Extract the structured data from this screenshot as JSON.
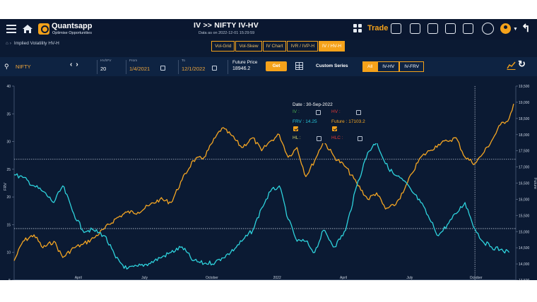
{
  "header": {
    "brand": "Quantsapp",
    "brand_tagline": "Optimise Opportunities",
    "title": "IV >> NIFTY IV-HV",
    "data_as_of": "Data as on 2022-12-01 15:29:59",
    "trade_label": "Trade"
  },
  "breadcrumb": {
    "label": "Implied Volatility HV-H"
  },
  "tabs": [
    "Vol-Grid",
    "Vol-Skew",
    "IV Chart",
    "IVR / IVP-H",
    "IV / HV-H"
  ],
  "active_tab": "IV / HV-H",
  "controls": {
    "symbol": "NIFTY",
    "hv_label": "HV/IFV",
    "hv_value": "20",
    "from_label": "From",
    "from_value": "1/4/2021",
    "to_label": "To",
    "to_value": "12/1/2022",
    "future_price_label": "Future Price",
    "future_price_value": "18946.2",
    "get_label": "Get",
    "custom_series_label": "Custom Series",
    "series_buttons": [
      "All",
      "IV-HV",
      "IV-FRV"
    ],
    "active_series": "All"
  },
  "tooltip": {
    "date": "Date : 30-Sep-2022",
    "items": [
      {
        "label": "IV :",
        "color": "#4caf50",
        "checked": false
      },
      {
        "label": "HV :",
        "color": "#e53935",
        "checked": false
      },
      {
        "label": "FRV : 14.25",
        "color": "#26c6da",
        "checked": true
      },
      {
        "label": "Future : 17103.2",
        "color": "#f5a623",
        "checked": true
      },
      {
        "label": "HL :",
        "color": "#d6d66a",
        "checked": false
      },
      {
        "label": "HLC :",
        "color": "#e53935",
        "checked": false
      }
    ]
  },
  "colors": {
    "accent": "#f5a21a",
    "background": "#0b1a33",
    "frv_line": "#2ed3dd",
    "future_line": "#f5a623"
  },
  "chart_data": {
    "type": "line",
    "ylabel_left": "FRV",
    "ylabel_right": "Future",
    "ylim_left": [
      5,
      40
    ],
    "ylim_right": [
      13500,
      19500
    ],
    "left_ticks": [
      "40",
      "35",
      "30",
      "25",
      "20",
      "15",
      "10",
      "5"
    ],
    "right_ticks": [
      "19,500",
      "19,000",
      "18,500",
      "18,000",
      "17,500",
      "17,000",
      "16,500",
      "16,000",
      "15,500",
      "15,000",
      "14,500",
      "14,000",
      "13,500"
    ],
    "x_ticks": [
      "April",
      "July",
      "October",
      "2022",
      "April",
      "July",
      "October"
    ],
    "x_tick_month_index": [
      2.9,
      5.9,
      8.95,
      11.9,
      14.9,
      17.9,
      20.9
    ],
    "crosshair": {
      "month_index": 20.85,
      "left_value": 14.3,
      "right_value": 17103.2
    },
    "reference_line_left_value": 26.8,
    "series": [
      {
        "name": "Future",
        "axis": "right",
        "x": [
          0,
          0.4,
          0.9,
          1.3,
          1.8,
          2.2,
          2.7,
          3.1,
          3.6,
          4.1,
          4.6,
          5.1,
          5.6,
          6.1,
          6.6,
          7.1,
          7.6,
          8.1,
          8.6,
          9.1,
          9.4,
          9.8,
          10.3,
          10.8,
          11.2,
          11.6,
          12.0,
          12.4,
          12.8,
          13.2,
          13.6,
          14.0,
          14.5,
          15.0,
          15.5,
          16.0,
          16.4,
          16.8,
          17.2,
          17.6,
          18.0,
          18.4,
          18.8,
          19.2,
          19.6,
          20.0,
          20.4,
          20.85,
          21.2,
          21.6,
          22.0,
          22.4,
          22.6
        ],
        "values": [
          14100,
          14700,
          14900,
          14500,
          14700,
          14200,
          14500,
          14600,
          14800,
          15100,
          15400,
          15600,
          15600,
          15800,
          16000,
          15900,
          16600,
          17200,
          17300,
          17900,
          18200,
          18000,
          17600,
          17900,
          17500,
          17800,
          18000,
          17300,
          17600,
          16700,
          17200,
          17800,
          17300,
          17000,
          16500,
          16000,
          16200,
          15700,
          15800,
          16200,
          16800,
          17300,
          17500,
          17700,
          17800,
          17900,
          17300,
          17103,
          17400,
          17800,
          18300,
          18500,
          18950
        ]
      },
      {
        "name": "FRV",
        "axis": "left",
        "x": [
          0,
          0.4,
          0.9,
          1.3,
          1.8,
          2.2,
          2.7,
          3.1,
          3.6,
          4.1,
          4.6,
          5.1,
          5.6,
          6.1,
          6.6,
          7.1,
          7.6,
          8.1,
          8.6,
          9.1,
          9.4,
          9.8,
          10.3,
          10.8,
          11.2,
          11.6,
          12.0,
          12.4,
          12.8,
          13.2,
          13.6,
          14.0,
          14.5,
          15.0,
          15.5,
          16.0,
          16.4,
          16.8,
          17.2,
          17.6,
          18.0,
          18.4,
          18.8,
          19.2,
          19.6,
          20.0,
          20.4,
          20.85,
          21.2,
          21.6,
          22.0,
          22.4
        ],
        "values": [
          24,
          23.5,
          22,
          21,
          19,
          22,
          17,
          14,
          14,
          13,
          9,
          7,
          7.5,
          8,
          9,
          10,
          11,
          8.5,
          8,
          8.2,
          9,
          10,
          12,
          14,
          18,
          21,
          22,
          16,
          12,
          12,
          10,
          14,
          11,
          14,
          22,
          28,
          30,
          26,
          24,
          23,
          21,
          19,
          16,
          13,
          15,
          17,
          19,
          14.25,
          12,
          11,
          10.5,
          10
        ]
      }
    ]
  }
}
